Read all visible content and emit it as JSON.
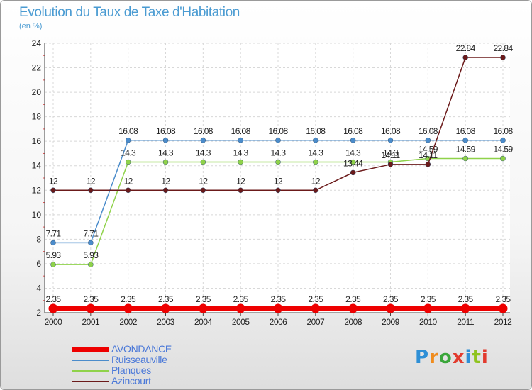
{
  "title": "Evolution du Taux de Taxe d'Habitation",
  "subtitle": "(en %)",
  "logo": {
    "text": "Proxiti"
  },
  "chart_data": {
    "type": "line",
    "x": [
      "2000",
      "2001",
      "2002",
      "2003",
      "2004",
      "2005",
      "2006",
      "2007",
      "2008",
      "2009",
      "2010",
      "2011",
      "2012"
    ],
    "ylim": [
      2,
      24
    ],
    "yticks": [
      2,
      4,
      6,
      8,
      10,
      12,
      14,
      16,
      18,
      20,
      22,
      24
    ],
    "grid": true,
    "legend_position": "bottom-left",
    "series": [
      {
        "name": "AVONDANCE",
        "color": "#ee0000",
        "values": [
          2.35,
          2.35,
          2.35,
          2.35,
          2.35,
          2.35,
          2.35,
          2.35,
          2.35,
          2.35,
          2.35,
          2.35,
          2.35
        ],
        "labels": [
          "2.35",
          "2.35",
          "2.35",
          "2.35",
          "2.35",
          "2.35",
          "2.35",
          "2.35",
          "2.35",
          "2.35",
          "2.35",
          "2.35",
          "2.35"
        ]
      },
      {
        "name": "Ruisseauville",
        "color": "#4b8ccb",
        "values": [
          7.71,
          7.71,
          16.08,
          16.08,
          16.08,
          16.08,
          16.08,
          16.08,
          16.08,
          16.08,
          16.08,
          16.08,
          16.08
        ],
        "labels": [
          "7.71",
          "7.71",
          "16.08",
          "16.08",
          "16.08",
          "16.08",
          "16.08",
          "16.08",
          "16.08",
          "16.08",
          "16.08",
          "16.08",
          "16.08"
        ]
      },
      {
        "name": "Planques",
        "color": "#8fd24a",
        "values": [
          5.93,
          5.93,
          14.3,
          14.3,
          14.3,
          14.3,
          14.3,
          14.3,
          14.3,
          14.3,
          14.59,
          14.59,
          14.59
        ],
        "labels": [
          "5.93",
          "5.93",
          "14.3",
          "14.3",
          "14.3",
          "14.3",
          "14.3",
          "14.3",
          "14.3",
          "14.3",
          "14.59",
          "14.59",
          "14.59"
        ]
      },
      {
        "name": "Azincourt",
        "color": "#6b1a1a",
        "values": [
          12,
          12,
          12,
          12,
          12,
          12,
          12,
          12,
          13.44,
          14.11,
          14.11,
          22.84,
          22.84
        ],
        "labels": [
          "12",
          "12",
          "12",
          "12",
          "12",
          "12",
          "12",
          "12",
          "13.44",
          "14.11",
          "14.11",
          "22.84",
          "22.84"
        ]
      }
    ]
  }
}
